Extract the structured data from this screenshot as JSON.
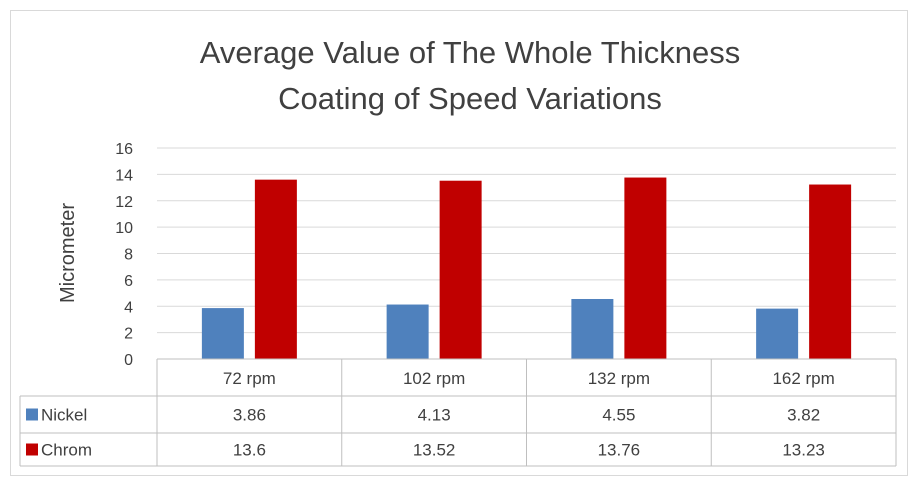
{
  "chart_data": {
    "type": "bar",
    "title": [
      "Average Value of The Whole Thickness",
      "Coating of Speed Variations"
    ],
    "ylabel": "Micrometer",
    "xlabel": "",
    "ylim": [
      0,
      16
    ],
    "yticks": [
      "0",
      "2",
      "4",
      "6",
      "8",
      "10",
      "12",
      "14",
      "16"
    ],
    "grid": true,
    "legend": "data-table",
    "categories": [
      "72 rpm",
      "102 rpm",
      "132 rpm",
      "162 rpm"
    ],
    "series": [
      {
        "name": "Nickel",
        "color": "#4f81bd",
        "values": [
          3.86,
          4.13,
          4.55,
          3.82
        ],
        "labels": [
          "3.86",
          "4.13",
          "4.55",
          "3.82"
        ]
      },
      {
        "name": "Chrom",
        "color": "#c00000",
        "values": [
          13.6,
          13.52,
          13.76,
          13.23
        ],
        "labels": [
          "13.6",
          "13.52",
          "13.76",
          "13.23"
        ]
      }
    ]
  }
}
